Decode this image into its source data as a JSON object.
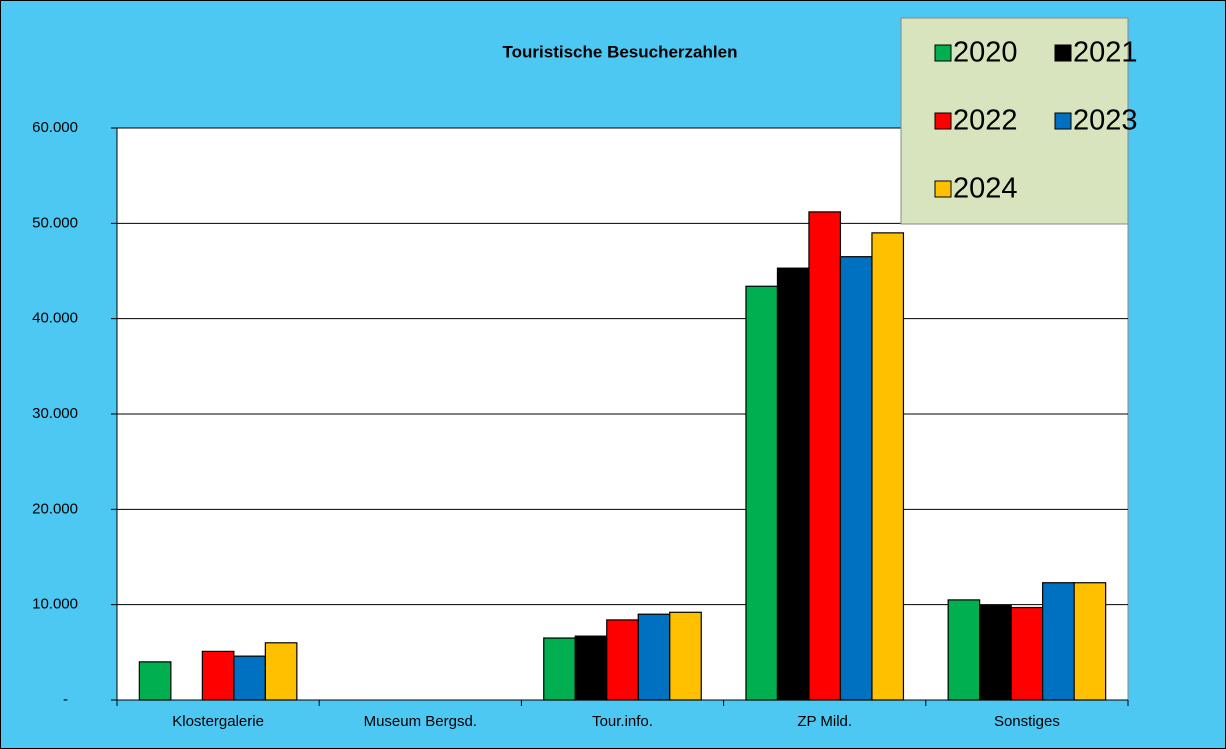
{
  "chart_data": {
    "type": "bar",
    "title": "Touristische Besucherzahlen",
    "categories": [
      "Klostergalerie",
      "Museum Bergsd.",
      "Tour.info.",
      "ZP Mild.",
      "Sonstiges"
    ],
    "series": [
      {
        "name": "2020",
        "color": "#00B050",
        "values": [
          4000,
          0,
          6500,
          43400,
          10500
        ]
      },
      {
        "name": "2021",
        "color": "#000000",
        "values": [
          0,
          0,
          6700,
          45300,
          9900
        ]
      },
      {
        "name": "2022",
        "color": "#FF0000",
        "values": [
          5100,
          0,
          8400,
          51200,
          9700
        ]
      },
      {
        "name": "2023",
        "color": "#0070C0",
        "values": [
          4600,
          0,
          9000,
          46500,
          12300
        ]
      },
      {
        "name": "2024",
        "color": "#FFC000",
        "values": [
          6000,
          0,
          9200,
          49000,
          12300
        ]
      }
    ],
    "ylim": [
      0,
      60000
    ],
    "yticks": [
      {
        "value": 0,
        "label": "-"
      },
      {
        "value": 10000,
        "label": "10.000"
      },
      {
        "value": 20000,
        "label": "20.000"
      },
      {
        "value": 30000,
        "label": "30.000"
      },
      {
        "value": 40000,
        "label": "40.000"
      },
      {
        "value": 50000,
        "label": "50.000"
      },
      {
        "value": 60000,
        "label": "60.000"
      }
    ],
    "grid": true,
    "legend": "top-right"
  }
}
